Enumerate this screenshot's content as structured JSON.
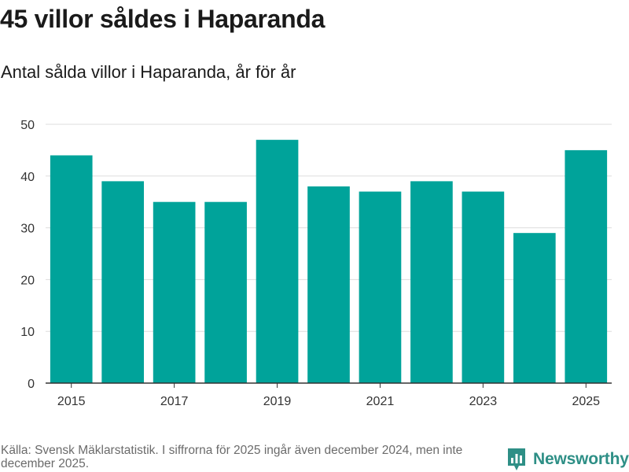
{
  "title": "45 villor såldes i Haparanda",
  "subtitle": "Antal sålda villor i Haparanda, år för år",
  "source": "Källa: Svensk Mäklarstatistik. I siffrorna för 2025 ingår även december 2024, men inte december 2025.",
  "logo": {
    "text": "Newsworthy",
    "icon": "bar-chart-icon",
    "color": "#2e8f86"
  },
  "colors": {
    "bar": "#00a39a",
    "grid": "#dddddd",
    "axis": "#333333"
  },
  "chart_data": {
    "type": "bar",
    "title": "45 villor såldes i Haparanda",
    "xlabel": "",
    "ylabel": "",
    "categories": [
      2015,
      2016,
      2017,
      2018,
      2019,
      2020,
      2021,
      2022,
      2023,
      2024,
      2025
    ],
    "values": [
      44,
      39,
      35,
      35,
      47,
      38,
      37,
      39,
      37,
      29,
      45
    ],
    "ylim": [
      0,
      50
    ],
    "yticks": [
      0,
      10,
      20,
      30,
      40,
      50
    ],
    "xtick_labels": [
      "2015",
      "2017",
      "2019",
      "2021",
      "2023",
      "2025"
    ],
    "grid": true
  }
}
